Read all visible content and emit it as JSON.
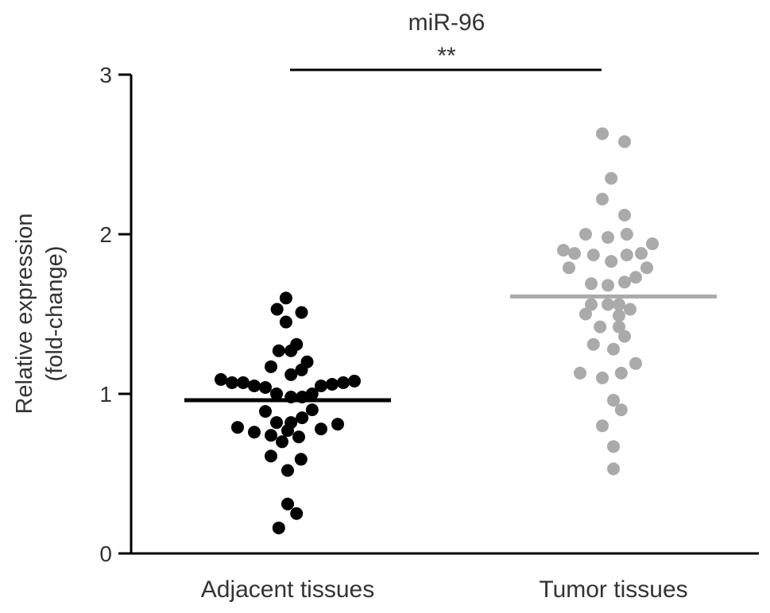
{
  "chart_data": {
    "type": "scatter",
    "title": "miR-96",
    "ylabel_line1": "Relative expression",
    "ylabel_line2": "(fold-change)",
    "ylim": [
      0,
      3
    ],
    "yticks": [
      "0",
      "1",
      "2",
      "3"
    ],
    "categories": [
      "Adjacent tissues",
      "Tumor tissues"
    ],
    "significance": {
      "label": "**",
      "between": [
        "Adjacent tissues",
        "Tumor tissues"
      ]
    },
    "series": [
      {
        "name": "Adjacent tissues",
        "color": "#000000",
        "mean": 0.96,
        "points": [
          {
            "dx": -0.015,
            "y": 1.6
          },
          {
            "dx": -0.095,
            "y": 1.53
          },
          {
            "dx": 0.125,
            "y": 1.51
          },
          {
            "dx": -0.015,
            "y": 1.45
          },
          {
            "dx": -0.08,
            "y": 1.27
          },
          {
            "dx": 0.03,
            "y": 1.27
          },
          {
            "dx": 0.08,
            "y": 1.31
          },
          {
            "dx": 0.175,
            "y": 1.2
          },
          {
            "dx": -0.15,
            "y": 1.17
          },
          {
            "dx": 0.125,
            "y": 1.15
          },
          {
            "dx": 0.03,
            "y": 1.12
          },
          {
            "dx": -0.6,
            "y": 1.09
          },
          {
            "dx": -0.5,
            "y": 1.07
          },
          {
            "dx": -0.4,
            "y": 1.07
          },
          {
            "dx": -0.3,
            "y": 1.05
          },
          {
            "dx": -0.2,
            "y": 1.04
          },
          {
            "dx": 0.3,
            "y": 1.05
          },
          {
            "dx": 0.4,
            "y": 1.06
          },
          {
            "dx": 0.5,
            "y": 1.07
          },
          {
            "dx": 0.6,
            "y": 1.08
          },
          {
            "dx": -0.1,
            "y": 1.0
          },
          {
            "dx": 0.03,
            "y": 0.98
          },
          {
            "dx": 0.13,
            "y": 0.98
          },
          {
            "dx": 0.22,
            "y": 1.0
          },
          {
            "dx": -0.2,
            "y": 0.89
          },
          {
            "dx": 0.22,
            "y": 0.9
          },
          {
            "dx": -0.1,
            "y": 0.82
          },
          {
            "dx": 0.03,
            "y": 0.82
          },
          {
            "dx": 0.13,
            "y": 0.85
          },
          {
            "dx": -0.45,
            "y": 0.79
          },
          {
            "dx": -0.3,
            "y": 0.76
          },
          {
            "dx": -0.15,
            "y": 0.74
          },
          {
            "dx": 0.0,
            "y": 0.77
          },
          {
            "dx": 0.1,
            "y": 0.73
          },
          {
            "dx": 0.3,
            "y": 0.78
          },
          {
            "dx": 0.45,
            "y": 0.81
          },
          {
            "dx": -0.05,
            "y": 0.7
          },
          {
            "dx": -0.15,
            "y": 0.61
          },
          {
            "dx": 0.12,
            "y": 0.59
          },
          {
            "dx": 0.0,
            "y": 0.52
          },
          {
            "dx": 0.0,
            "y": 0.31
          },
          {
            "dx": 0.08,
            "y": 0.25
          },
          {
            "dx": -0.08,
            "y": 0.16
          }
        ]
      },
      {
        "name": "Tumor tissues",
        "color": "#aaaaaa",
        "mean": 1.61,
        "points": [
          {
            "dx": -0.1,
            "y": 2.63
          },
          {
            "dx": 0.1,
            "y": 2.58
          },
          {
            "dx": -0.02,
            "y": 2.35
          },
          {
            "dx": -0.1,
            "y": 2.22
          },
          {
            "dx": 0.1,
            "y": 2.12
          },
          {
            "dx": -0.25,
            "y": 2.0
          },
          {
            "dx": -0.05,
            "y": 1.98
          },
          {
            "dx": 0.12,
            "y": 2.0
          },
          {
            "dx": 0.35,
            "y": 1.94
          },
          {
            "dx": -0.45,
            "y": 1.9
          },
          {
            "dx": -0.35,
            "y": 1.88
          },
          {
            "dx": -0.18,
            "y": 1.87
          },
          {
            "dx": 0.12,
            "y": 1.87
          },
          {
            "dx": 0.25,
            "y": 1.88
          },
          {
            "dx": -0.4,
            "y": 1.79
          },
          {
            "dx": -0.02,
            "y": 1.83
          },
          {
            "dx": 0.3,
            "y": 1.79
          },
          {
            "dx": 0.2,
            "y": 1.73
          },
          {
            "dx": -0.2,
            "y": 1.69
          },
          {
            "dx": -0.05,
            "y": 1.68
          },
          {
            "dx": 0.1,
            "y": 1.7
          },
          {
            "dx": -0.2,
            "y": 1.56
          },
          {
            "dx": -0.05,
            "y": 1.56
          },
          {
            "dx": 0.05,
            "y": 1.56
          },
          {
            "dx": 0.15,
            "y": 1.53
          },
          {
            "dx": -0.25,
            "y": 1.5
          },
          {
            "dx": 0.05,
            "y": 1.49
          },
          {
            "dx": -0.12,
            "y": 1.42
          },
          {
            "dx": 0.05,
            "y": 1.42
          },
          {
            "dx": 0.1,
            "y": 1.36
          },
          {
            "dx": -0.18,
            "y": 1.31
          },
          {
            "dx": 0.0,
            "y": 1.28
          },
          {
            "dx": 0.2,
            "y": 1.19
          },
          {
            "dx": -0.3,
            "y": 1.13
          },
          {
            "dx": -0.1,
            "y": 1.1
          },
          {
            "dx": 0.07,
            "y": 1.13
          },
          {
            "dx": 0.0,
            "y": 0.96
          },
          {
            "dx": 0.07,
            "y": 0.9
          },
          {
            "dx": -0.1,
            "y": 0.8
          },
          {
            "dx": 0.0,
            "y": 0.67
          },
          {
            "dx": 0.0,
            "y": 0.53
          }
        ]
      }
    ]
  }
}
